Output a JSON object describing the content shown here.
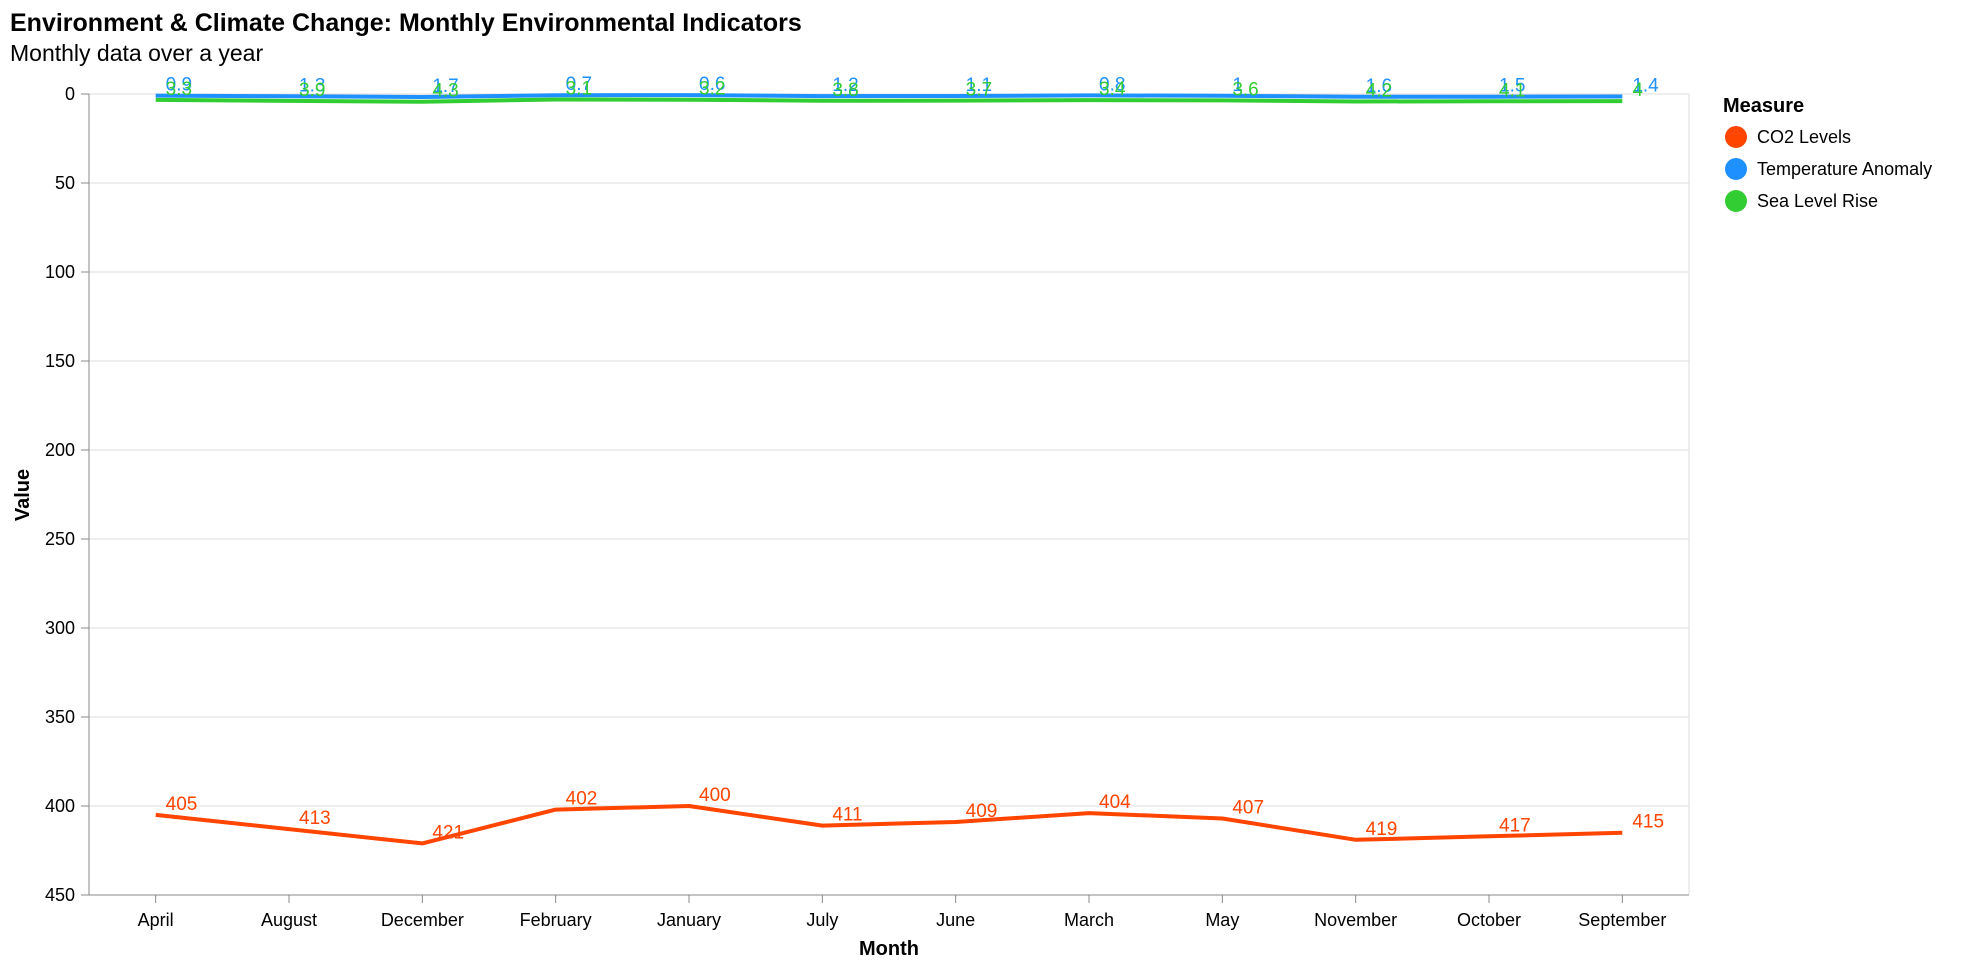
{
  "chart_data": {
    "type": "line",
    "title": "Environment & Climate Change: Monthly Environmental Indicators",
    "subtitle": "Monthly data over a year",
    "xlabel": "Month",
    "ylabel": "Value",
    "categories": [
      "April",
      "August",
      "December",
      "February",
      "January",
      "July",
      "June",
      "March",
      "May",
      "November",
      "October",
      "September"
    ],
    "ylim": [
      0,
      450
    ],
    "y_reversed": true,
    "yticks": [
      0,
      50,
      100,
      150,
      200,
      250,
      300,
      350,
      400,
      450
    ],
    "grid": true,
    "legend": {
      "title": "Measure",
      "position": "right"
    },
    "series": [
      {
        "name": "CO2 Levels",
        "color": "#ff4500",
        "values": [
          405,
          413,
          421,
          402,
          400,
          411,
          409,
          404,
          407,
          419,
          417,
          415
        ]
      },
      {
        "name": "Temperature Anomaly",
        "color": "#1e90ff",
        "values": [
          0.9,
          1.3,
          1.7,
          0.7,
          0.6,
          1.2,
          1.1,
          0.8,
          1,
          1.6,
          1.5,
          1.4
        ]
      },
      {
        "name": "Sea Level Rise",
        "color": "#32cd32",
        "values": [
          3.3,
          3.9,
          4.3,
          3.1,
          3.2,
          3.8,
          3.7,
          3.4,
          3.6,
          4.2,
          4.1,
          4
        ]
      }
    ]
  }
}
